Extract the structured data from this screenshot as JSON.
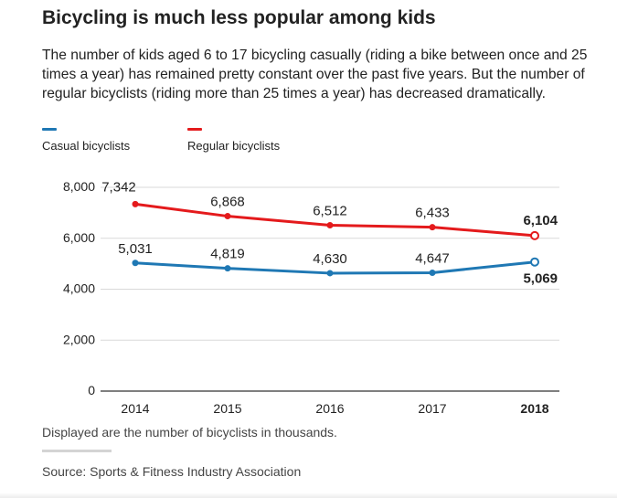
{
  "colors": {
    "casual": "#1f78b4",
    "regular": "#e41a1c"
  },
  "title": "Bicycling is much less popular among kids",
  "subtitle": "The number of kids aged 6 to 17 bicycling casually (riding a bike between once and 25 times a year) has remained pretty constant over the past five years. But the number of regular bicyclists (riding more than 25 times a year) has decreased dramatically.",
  "note": "Displayed are the number of bicyclists in thousands.",
  "source": "Source: Sports & Fitness Industry Association",
  "chart_data": {
    "type": "line",
    "x": [
      "2014",
      "2015",
      "2016",
      "2017",
      "2018"
    ],
    "ylim": [
      0,
      8000
    ],
    "yticks": [
      "0",
      "2,000",
      "4,000",
      "6,000",
      "8,000"
    ],
    "grid": true,
    "legend_position": "top-left",
    "series": [
      {
        "name": "Casual bicyclists",
        "values": [
          5031,
          4819,
          4630,
          4647,
          5069
        ],
        "labels": [
          "5,031",
          "4,819",
          "4,630",
          "4,647",
          "5,069"
        ]
      },
      {
        "name": "Regular bicyclists",
        "values": [
          7342,
          6868,
          6512,
          6433,
          6104
        ],
        "labels": [
          "7,342",
          "6,868",
          "6,512",
          "6,433",
          "6,104"
        ]
      }
    ]
  }
}
